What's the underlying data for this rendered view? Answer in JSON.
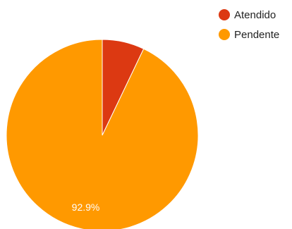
{
  "chart_data": {
    "type": "pie",
    "categories": [
      "Atendido",
      "Pendente"
    ],
    "values": [
      7.1,
      92.9
    ],
    "colors": [
      "#dc3912",
      "#ff9900"
    ],
    "data_labels": [
      "",
      "92.9%"
    ],
    "legend_position": "top-right"
  }
}
